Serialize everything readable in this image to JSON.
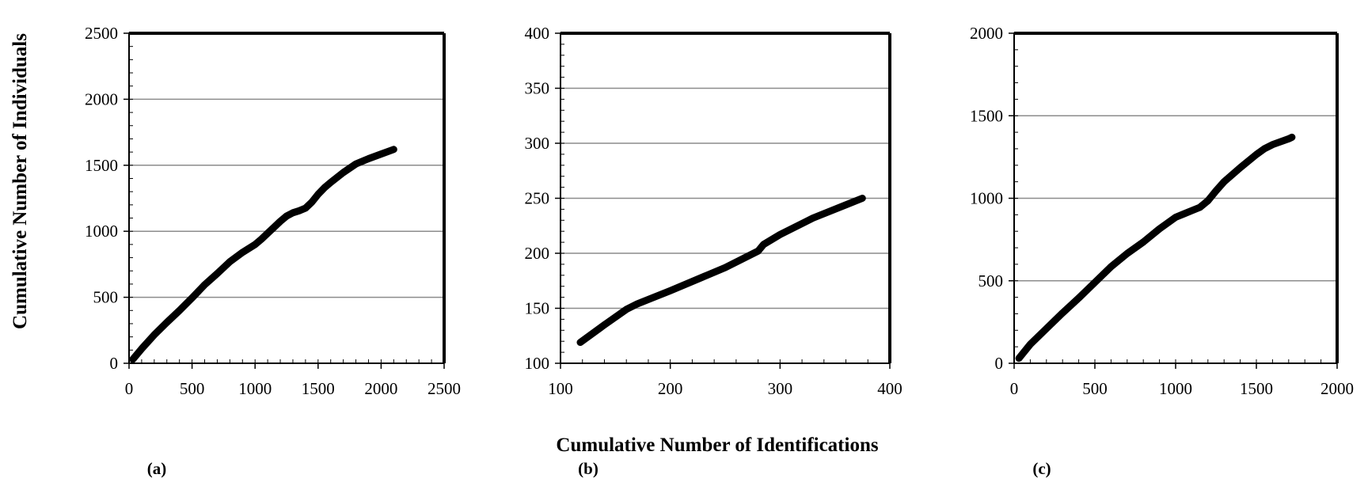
{
  "figure": {
    "ylabel": "Cumulative Number of Individuals",
    "xlabel": "Cumulative Number of Identifications"
  },
  "chart_data": [
    {
      "type": "line",
      "panel_label": "(a)",
      "xlim": [
        0,
        2500
      ],
      "ylim": [
        0,
        2500
      ],
      "xticks": [
        0,
        500,
        1000,
        1500,
        2000,
        2500
      ],
      "yticks": [
        0,
        500,
        1000,
        1500,
        2000,
        2500
      ],
      "xtick_labels": [
        "0",
        "500",
        "1000",
        "1500",
        "2000",
        "2500"
      ],
      "ytick_labels": [
        "0",
        "500",
        "1000",
        "1500",
        "2000",
        "2500"
      ],
      "grid": "horizontal",
      "series": [
        {
          "x": [
            30,
            100,
            200,
            300,
            400,
            500,
            600,
            700,
            800,
            900,
            1000,
            1050,
            1100,
            1150,
            1200,
            1250,
            1300,
            1350,
            1400,
            1450,
            1500,
            1550,
            1600,
            1700,
            1800,
            1900,
            2000,
            2100
          ],
          "y": [
            30,
            110,
            215,
            310,
            400,
            495,
            595,
            680,
            770,
            840,
            900,
            940,
            985,
            1030,
            1075,
            1115,
            1140,
            1155,
            1175,
            1220,
            1280,
            1330,
            1370,
            1445,
            1510,
            1550,
            1585,
            1620
          ]
        }
      ]
    },
    {
      "type": "line",
      "panel_label": "(b)",
      "xlim": [
        100,
        400
      ],
      "ylim": [
        100,
        400
      ],
      "xticks": [
        100,
        200,
        300,
        400
      ],
      "yticks": [
        100,
        150,
        200,
        250,
        300,
        350,
        400
      ],
      "xtick_labels": [
        "100",
        "200",
        "300",
        "400"
      ],
      "ytick_labels": [
        "100",
        "150",
        "200",
        "250",
        "300",
        "350",
        "400"
      ],
      "grid": "horizontal",
      "series": [
        {
          "x": [
            118,
            140,
            160,
            170,
            200,
            250,
            280,
            285,
            300,
            330,
            360,
            375
          ],
          "y": [
            119,
            135,
            149,
            154,
            166,
            187,
            202,
            208,
            217,
            232,
            244,
            250
          ]
        }
      ]
    },
    {
      "type": "line",
      "panel_label": "(c)",
      "xlim": [
        0,
        2000
      ],
      "ylim": [
        0,
        2000
      ],
      "xticks": [
        0,
        500,
        1000,
        1500,
        2000
      ],
      "yticks": [
        0,
        500,
        1000,
        1500,
        2000
      ],
      "xtick_labels": [
        "0",
        "500",
        "1000",
        "1500",
        "2000"
      ],
      "ytick_labels": [
        "0",
        "500",
        "1000",
        "1500",
        "2000"
      ],
      "grid": "horizontal",
      "series": [
        {
          "x": [
            30,
            100,
            200,
            300,
            400,
            500,
            600,
            700,
            800,
            900,
            1000,
            1050,
            1100,
            1150,
            1200,
            1250,
            1300,
            1400,
            1500,
            1550,
            1600,
            1700,
            1720
          ],
          "y": [
            30,
            115,
            210,
            305,
            395,
            490,
            585,
            665,
            735,
            815,
            885,
            905,
            925,
            945,
            985,
            1045,
            1100,
            1185,
            1265,
            1300,
            1325,
            1360,
            1370
          ]
        }
      ]
    }
  ]
}
